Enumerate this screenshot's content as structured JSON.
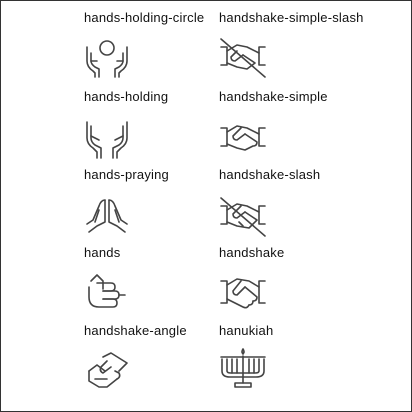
{
  "left_column": [
    {
      "label": "hands-holding-circle",
      "icon": "hands-holding-circle-icon"
    },
    {
      "label": "hands-holding",
      "icon": "hands-holding-icon"
    },
    {
      "label": "hands-praying",
      "icon": "hands-praying-icon"
    },
    {
      "label": "hands",
      "icon": "hands-icon"
    },
    {
      "label": "handshake-angle",
      "icon": "handshake-angle-icon"
    }
  ],
  "right_column": [
    {
      "label": "handshake-simple-slash",
      "icon": "handshake-simple-slash-icon"
    },
    {
      "label": "handshake-simple",
      "icon": "handshake-simple-icon"
    },
    {
      "label": "handshake-slash",
      "icon": "handshake-slash-icon"
    },
    {
      "label": "handshake",
      "icon": "handshake-icon"
    },
    {
      "label": "hanukiah",
      "icon": "hanukiah-icon"
    }
  ]
}
